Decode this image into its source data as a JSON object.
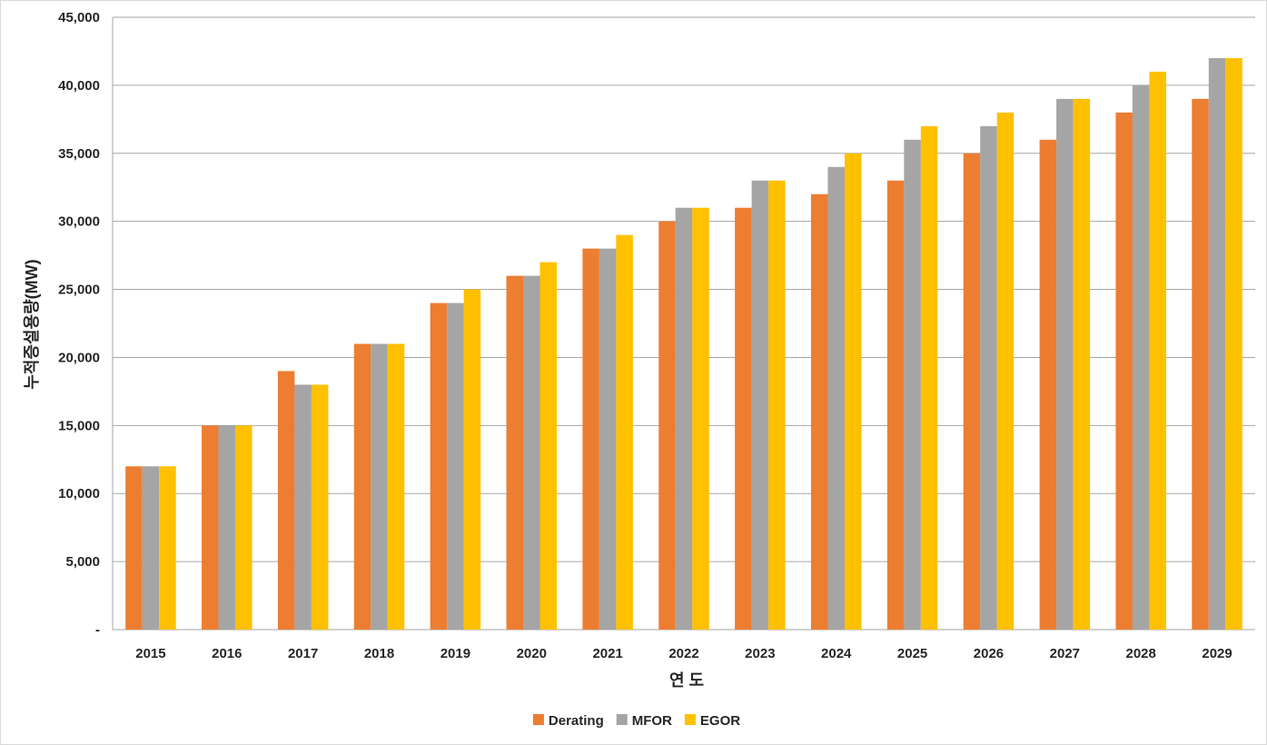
{
  "chart_data": {
    "type": "bar",
    "categories": [
      "2015",
      "2016",
      "2017",
      "2018",
      "2019",
      "2020",
      "2021",
      "2022",
      "2023",
      "2024",
      "2025",
      "2026",
      "2027",
      "2028",
      "2029"
    ],
    "series": [
      {
        "name": "Derating",
        "color": "#ed7d31",
        "values": [
          12000,
          15000,
          19000,
          21000,
          24000,
          26000,
          28000,
          30000,
          31000,
          32000,
          33000,
          35000,
          36000,
          38000,
          39000
        ]
      },
      {
        "name": "MFOR",
        "color": "#a5a5a5",
        "values": [
          12000,
          15000,
          18000,
          21000,
          24000,
          26000,
          28000,
          31000,
          33000,
          34000,
          36000,
          37000,
          39000,
          40000,
          42000
        ]
      },
      {
        "name": "EGOR",
        "color": "#ffc000",
        "values": [
          12000,
          15000,
          18000,
          21000,
          25000,
          27000,
          29000,
          31000,
          33000,
          35000,
          37000,
          38000,
          39000,
          41000,
          42000
        ]
      }
    ],
    "title": "",
    "xlabel": "연 도",
    "ylabel": "누적증설용량(MW)",
    "ylim": [
      0,
      45000
    ],
    "yticks": [
      0,
      5000,
      10000,
      15000,
      20000,
      25000,
      30000,
      35000,
      40000,
      45000
    ],
    "ytick_labels": [
      "-",
      "5,000",
      "10,000",
      "15,000",
      "20,000",
      "25,000",
      "30,000",
      "35,000",
      "40,000",
      "45,000"
    ],
    "grid": true,
    "legend_position": "bottom-center"
  }
}
